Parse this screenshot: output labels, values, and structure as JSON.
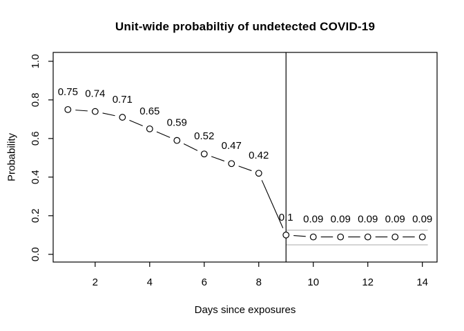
{
  "chart_data": {
    "type": "line",
    "title": "Unit-wide probabiltiy of undetected COVID-19",
    "xlabel": "Days since exposures",
    "ylabel": "Probability",
    "x": [
      1,
      2,
      3,
      4,
      5,
      6,
      7,
      8,
      9,
      10,
      11,
      12,
      13,
      14
    ],
    "values": [
      0.75,
      0.74,
      0.71,
      0.65,
      0.59,
      0.52,
      0.47,
      0.42,
      0.1,
      0.09,
      0.09,
      0.09,
      0.09,
      0.09
    ],
    "point_labels": [
      "0.75",
      "0.74",
      "0.71",
      "0.65",
      "0.59",
      "0.52",
      "0.47",
      "0.42",
      "0.1",
      "0.09",
      "0.09",
      "0.09",
      "0.09",
      "0.09"
    ],
    "x_ticks": [
      2,
      4,
      6,
      8,
      10,
      12,
      14
    ],
    "x_tick_labels": [
      "2",
      "4",
      "6",
      "8",
      "10",
      "12",
      "14"
    ],
    "y_ticks": [
      0.0,
      0.2,
      0.4,
      0.6,
      0.8,
      1.0
    ],
    "y_tick_labels": [
      "0.0",
      "0.2",
      "0.4",
      "0.6",
      "0.8",
      "1.0"
    ],
    "xlim": [
      0.46,
      14.54
    ],
    "ylim": [
      -0.04,
      1.046
    ],
    "vline_x": 9,
    "band": {
      "upper": 0.125,
      "lower": 0.049,
      "x_start": 9,
      "x_end": 14.2
    },
    "grid": false,
    "legend": "none",
    "marker": "open-circle",
    "line_style": "segments-with-gaps",
    "colors": {
      "line": "#000000",
      "marker_stroke": "#000000",
      "marker_fill": "#ffffff",
      "axis": "#000000",
      "text": "#000000",
      "band": "#b3b3b3",
      "background": "#ffffff"
    }
  }
}
